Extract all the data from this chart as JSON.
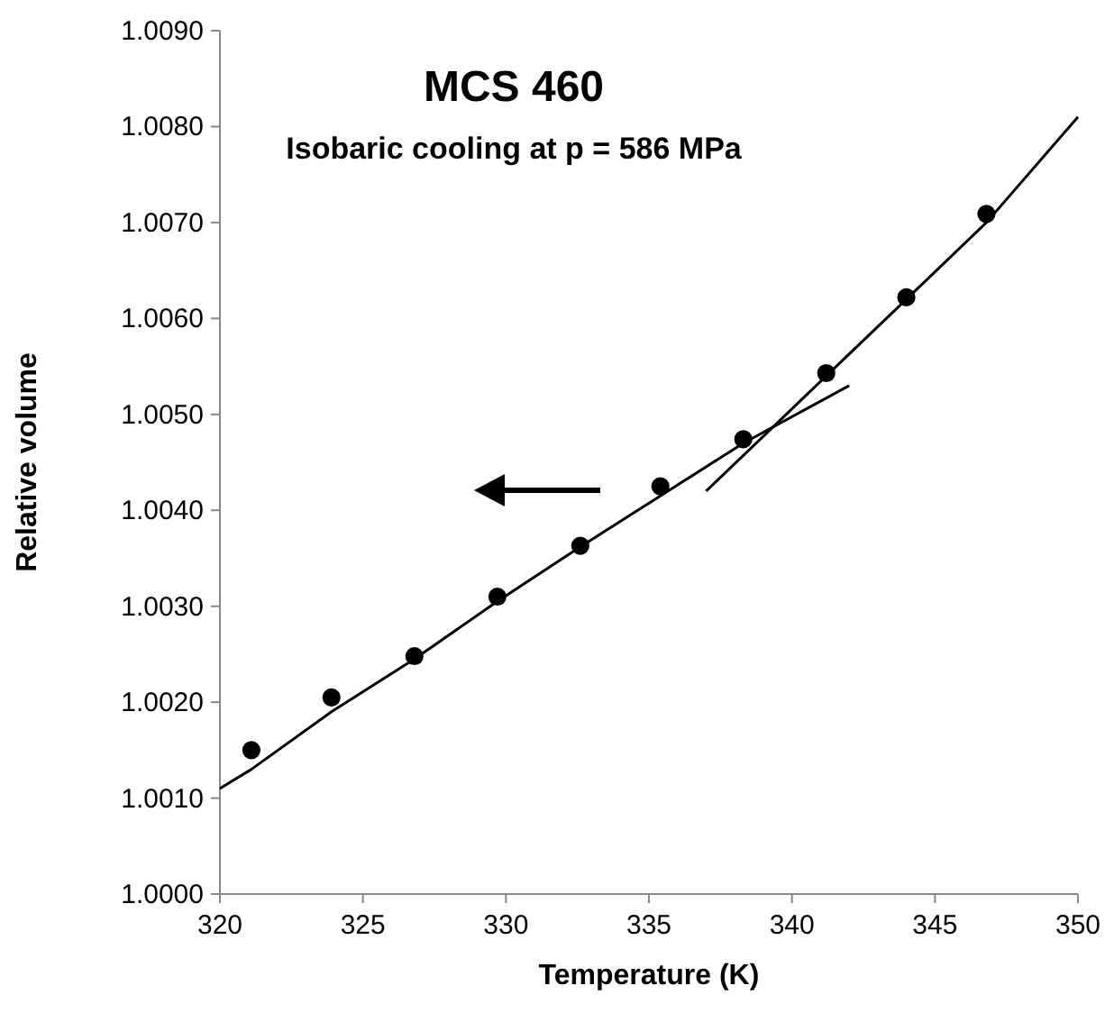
{
  "chart_data": {
    "type": "scatter",
    "title": "MCS 460",
    "subtitle": "Isobaric cooling at p = 586 MPa",
    "xlabel": "Temperature (K)",
    "ylabel": "Relative volume",
    "xlim": [
      320,
      350
    ],
    "xticks": [
      320,
      325,
      330,
      335,
      340,
      345,
      350
    ],
    "ylim": [
      1.0,
      1.009
    ],
    "yticks": [
      {
        "value": 1.0,
        "label": "1.0000"
      },
      {
        "value": 1.001,
        "label": "1.0010"
      },
      {
        "value": 1.002,
        "label": "1.0020"
      },
      {
        "value": 1.003,
        "label": "1.0030"
      },
      {
        "value": 1.004,
        "label": "1.0040"
      },
      {
        "value": 1.005,
        "label": "1.0050"
      },
      {
        "value": 1.006,
        "label": "1.0060"
      },
      {
        "value": 1.007,
        "label": "1.0070"
      },
      {
        "value": 1.008,
        "label": "1.0080"
      },
      {
        "value": 1.009,
        "label": "1.0090"
      }
    ],
    "grid": false,
    "series": [
      {
        "marker": "circle",
        "color": "#000000",
        "x": [
          321.1,
          323.9,
          326.8,
          329.7,
          332.6,
          335.4,
          338.3,
          341.2,
          344.0,
          346.8
        ],
        "values": [
          1.0015,
          1.00205,
          1.00248,
          1.0031,
          1.00363,
          1.00425,
          1.00474,
          1.00543,
          1.00622,
          1.00709
        ]
      },
      {
        "type": "line",
        "marker": "none",
        "color": "#000000",
        "x": [
          320,
          321.1,
          323.9,
          326.8,
          329.7,
          332.6,
          335.4,
          338.3,
          342
        ],
        "values": [
          1.0011,
          1.0013,
          1.0019,
          1.00245,
          1.00305,
          1.00362,
          1.00415,
          1.0047,
          1.0053
        ]
      },
      {
        "type": "line",
        "marker": "none",
        "color": "#000000",
        "x": [
          337,
          341.2,
          344,
          346.8,
          350
        ],
        "values": [
          1.0042,
          1.0054,
          1.0062,
          1.007,
          1.0081
        ]
      }
    ]
  }
}
